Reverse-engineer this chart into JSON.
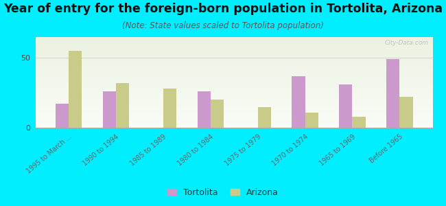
{
  "title": "Year of entry for the foreign-born population in Tortolita, Arizona",
  "subtitle": "(Note: State values scaled to Tortolita population)",
  "categories": [
    "1995 to March ...",
    "1990 to 1994",
    "1985 to 1989",
    "1980 to 1984",
    "1975 to 1979",
    "1970 to 1974",
    "1965 to 1969",
    "Before 1965"
  ],
  "tortolita_values": [
    17,
    26,
    0,
    26,
    0,
    37,
    31,
    49
  ],
  "arizona_values": [
    55,
    32,
    28,
    20,
    15,
    11,
    8,
    22
  ],
  "tortolita_color": "#cc99cc",
  "arizona_color": "#c8cc88",
  "background_color": "#00eeff",
  "ylim": [
    0,
    65
  ],
  "yticks": [
    0,
    50
  ],
  "bar_width": 0.28,
  "title_fontsize": 12.5,
  "subtitle_fontsize": 8.5,
  "watermark": "City-Data.com",
  "legend_labels": [
    "Tortolita",
    "Arizona"
  ]
}
